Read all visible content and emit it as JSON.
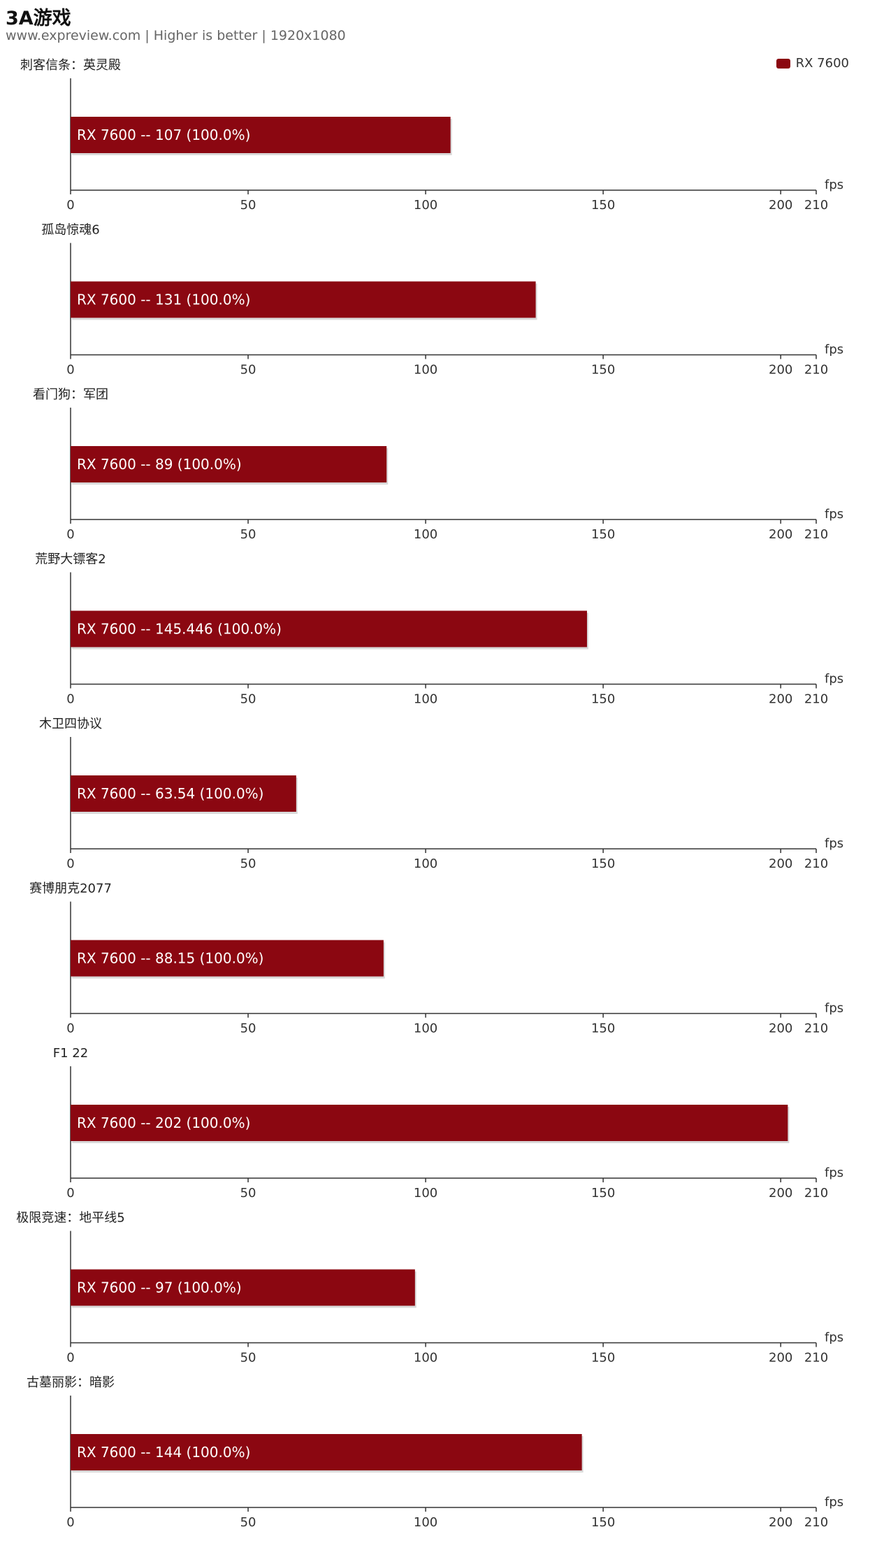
{
  "header": {
    "title": "3A游戏",
    "subtitle": "www.expreview.com | Higher is better | 1920x1080"
  },
  "legend": {
    "label": "RX 7600",
    "color": "#8b0711"
  },
  "chart_data": {
    "type": "bar",
    "orientation": "horizontal",
    "unit": "fps",
    "xlim": [
      0,
      210
    ],
    "ticks": [
      0,
      50,
      100,
      150,
      200,
      210
    ],
    "series_name": "RX 7600",
    "bar_color": "#8b0711",
    "separator": "--",
    "panels": [
      {
        "category": "刺客信条：英灵殿",
        "value": 107,
        "value_text": "107",
        "percent": "100.0%"
      },
      {
        "category": "孤岛惊魂6",
        "value": 131,
        "value_text": "131",
        "percent": "100.0%"
      },
      {
        "category": "看门狗：军团",
        "value": 89,
        "value_text": "89",
        "percent": "100.0%"
      },
      {
        "category": "荒野大镖客2",
        "value": 145.446,
        "value_text": "145.446",
        "percent": "100.0%"
      },
      {
        "category": "木卫四协议",
        "value": 63.54,
        "value_text": "63.54",
        "percent": "100.0%"
      },
      {
        "category": "赛博朋克2077",
        "value": 88.15,
        "value_text": "88.15",
        "percent": "100.0%"
      },
      {
        "category": "F1 22",
        "value": 202,
        "value_text": "202",
        "percent": "100.0%"
      },
      {
        "category": "极限竞速：地平线5",
        "value": 97,
        "value_text": "97",
        "percent": "100.0%"
      },
      {
        "category": "古墓丽影：暗影",
        "value": 144,
        "value_text": "144",
        "percent": "100.0%"
      }
    ]
  }
}
